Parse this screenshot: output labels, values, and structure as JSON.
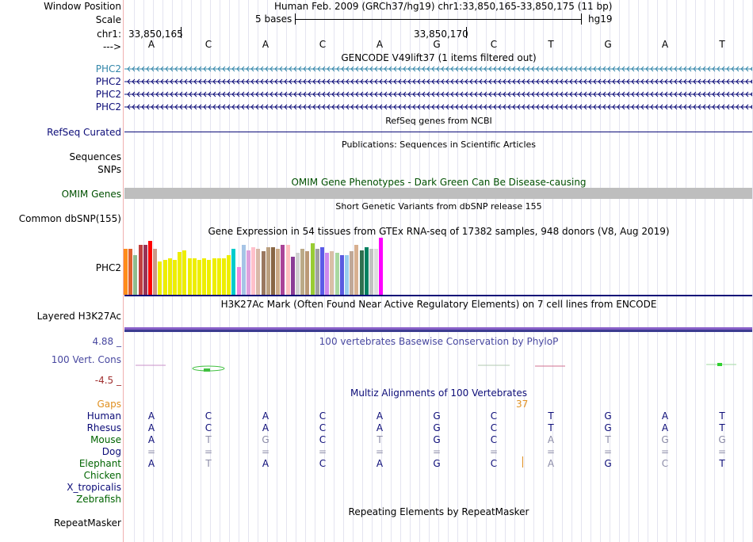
{
  "header": {
    "window_position_label": "Window Position",
    "window_position_value": "Human Feb. 2009 (GRCh37/hg19)   chr1:33,850,165-33,850,175 (11 bp)",
    "scale_label": "Scale",
    "scale_text": "5 bases",
    "scale_db": "hg19",
    "chrom_label": "chr1:",
    "coord_left": "33,850,165",
    "coord_mid": "33,850,170",
    "strand_label": "--->",
    "bases": [
      "A",
      "C",
      "A",
      "C",
      "A",
      "G",
      "C",
      "T",
      "G",
      "A",
      "T"
    ]
  },
  "gencode": {
    "title": "GENCODE V49lift37 (1 items filtered out)",
    "genes": [
      "PHC2",
      "PHC2",
      "PHC2",
      "PHC2"
    ],
    "color_first": "#3286a9",
    "color_rest": "#0c0c78"
  },
  "refseq": {
    "title": "RefSeq genes from NCBI",
    "label": "RefSeq Curated"
  },
  "publications": {
    "title": "Publications: Sequences in Scientific Articles",
    "label1": "Sequences",
    "label2": "SNPs"
  },
  "omim": {
    "title": "OMIM Gene Phenotypes - Dark Green Can Be Disease-causing",
    "label": "OMIM Genes"
  },
  "dbsnp": {
    "title": "Short Genetic Variants from dbSNP release 155",
    "label": "Common dbSNP(155)"
  },
  "gtex": {
    "title": "Gene Expression in 54 tissues from GTEx RNA-seq of 17382 samples, 948 donors (V8, Aug 2019)",
    "label": "PHC2",
    "bars": [
      {
        "c": "#ff8c1a",
        "v": 0.8
      },
      {
        "c": "#e06030",
        "v": 0.8
      },
      {
        "c": "#8fbc8f",
        "v": 0.7
      },
      {
        "c": "#c04040",
        "v": 0.87
      },
      {
        "c": "#993355",
        "v": 0.87
      },
      {
        "c": "#ff0000",
        "v": 0.94
      },
      {
        "c": "#cc9988",
        "v": 0.8
      },
      {
        "c": "#eeee00",
        "v": 0.58
      },
      {
        "c": "#eeee00",
        "v": 0.61
      },
      {
        "c": "#eeee00",
        "v": 0.64
      },
      {
        "c": "#eeee00",
        "v": 0.61
      },
      {
        "c": "#eeee00",
        "v": 0.75
      },
      {
        "c": "#eeee00",
        "v": 0.78
      },
      {
        "c": "#eeee00",
        "v": 0.64
      },
      {
        "c": "#eeee00",
        "v": 0.64
      },
      {
        "c": "#eeee00",
        "v": 0.61
      },
      {
        "c": "#eeee00",
        "v": 0.64
      },
      {
        "c": "#eeee00",
        "v": 0.61
      },
      {
        "c": "#eeee00",
        "v": 0.64
      },
      {
        "c": "#eeee00",
        "v": 0.64
      },
      {
        "c": "#eeee00",
        "v": 0.64
      },
      {
        "c": "#eeee00",
        "v": 0.7
      },
      {
        "c": "#00cccc",
        "v": 0.8
      },
      {
        "c": "#ee88dd",
        "v": 0.49
      },
      {
        "c": "#a6c4e6",
        "v": 0.87
      },
      {
        "c": "#dda0dd",
        "v": 0.78
      },
      {
        "c": "#ffc0cb",
        "v": 0.83
      },
      {
        "c": "#d8b8a8",
        "v": 0.8
      },
      {
        "c": "#9a7860",
        "v": 0.77
      },
      {
        "c": "#bba080",
        "v": 0.83
      },
      {
        "c": "#886644",
        "v": 0.83
      },
      {
        "c": "#ccaa88",
        "v": 0.8
      },
      {
        "c": "#aa4499",
        "v": 0.87
      },
      {
        "c": "#ffc0c0",
        "v": 0.87
      },
      {
        "c": "#8a3c96",
        "v": 0.67
      },
      {
        "c": "#d0d0d0",
        "v": 0.73
      },
      {
        "c": "#bbaa88",
        "v": 0.8
      },
      {
        "c": "#bb9977",
        "v": 0.77
      },
      {
        "c": "#99cc33",
        "v": 0.9
      },
      {
        "c": "#a0a0a0",
        "v": 0.8
      },
      {
        "c": "#5a5ae8",
        "v": 0.83
      },
      {
        "c": "#cc88ee",
        "v": 0.73
      },
      {
        "c": "#d9bfa6",
        "v": 0.77
      },
      {
        "c": "#a8d8a0",
        "v": 0.73
      },
      {
        "c": "#5a5ae0",
        "v": 0.7
      },
      {
        "c": "#99ccee",
        "v": 0.7
      },
      {
        "c": "#c0a898",
        "v": 0.77
      },
      {
        "c": "#d8b090",
        "v": 0.87
      },
      {
        "c": "#2f6f4f",
        "v": 0.78
      },
      {
        "c": "#008060",
        "v": 0.83
      },
      {
        "c": "#c0c0c0",
        "v": 0.8
      },
      {
        "c": "#dddddd",
        "v": 0.8
      },
      {
        "c": "#ff00ff",
        "v": 1.0
      }
    ]
  },
  "h3k27ac": {
    "title": "H3K27Ac Mark (Often Found Near Active Regulatory Elements) on 7 cell lines from ENCODE",
    "label": "Layered H3K27Ac"
  },
  "phylop": {
    "title": "100 vertebrates Basewise Conservation by PhyloP",
    "label": "100 Vert. Cons",
    "max_label": "4.88 _",
    "min_label": "-4.5 _",
    "max_value": 4.88,
    "min_value": -4.5
  },
  "multiz": {
    "title": "Multiz Alignments of 100 Vertebrates",
    "gaps_label": "Gaps",
    "gap_count": "37",
    "rows": [
      {
        "name": "Human",
        "bases": [
          "A",
          "C",
          "A",
          "C",
          "A",
          "G",
          "C",
          "T",
          "G",
          "A",
          "T"
        ]
      },
      {
        "name": "Rhesus",
        "bases": [
          "A",
          "C",
          "A",
          "C",
          "A",
          "G",
          "C",
          "T",
          "G",
          "A",
          "T"
        ]
      },
      {
        "name": "Mouse",
        "bases": [
          "A",
          "T",
          "G",
          "C",
          "T",
          "G",
          "C",
          "A",
          "T",
          "G",
          "G"
        ]
      },
      {
        "name": "Dog",
        "bases": [
          "=",
          "=",
          "=",
          "=",
          "=",
          "=",
          "=",
          "=",
          "=",
          "=",
          "="
        ]
      },
      {
        "name": "Elephant",
        "bases": [
          "A",
          "T",
          "A",
          "C",
          "A",
          "G",
          "C",
          "A",
          "G",
          "C",
          "T"
        ]
      },
      {
        "name": "Chicken",
        "bases": []
      },
      {
        "name": "X_tropicalis",
        "bases": []
      },
      {
        "name": "Zebrafish",
        "bases": []
      }
    ],
    "mismatch": {
      "Mouse": [
        false,
        true,
        true,
        false,
        true,
        false,
        false,
        true,
        true,
        true,
        true
      ],
      "Dog": [
        true,
        true,
        true,
        true,
        true,
        true,
        true,
        true,
        true,
        true,
        true
      ],
      "Elephant": [
        false,
        true,
        false,
        false,
        false,
        false,
        false,
        true,
        false,
        true,
        false
      ]
    }
  },
  "repeatmasker": {
    "title": "Repeating Elements by RepeatMasker",
    "label": "RepeatMasker"
  }
}
